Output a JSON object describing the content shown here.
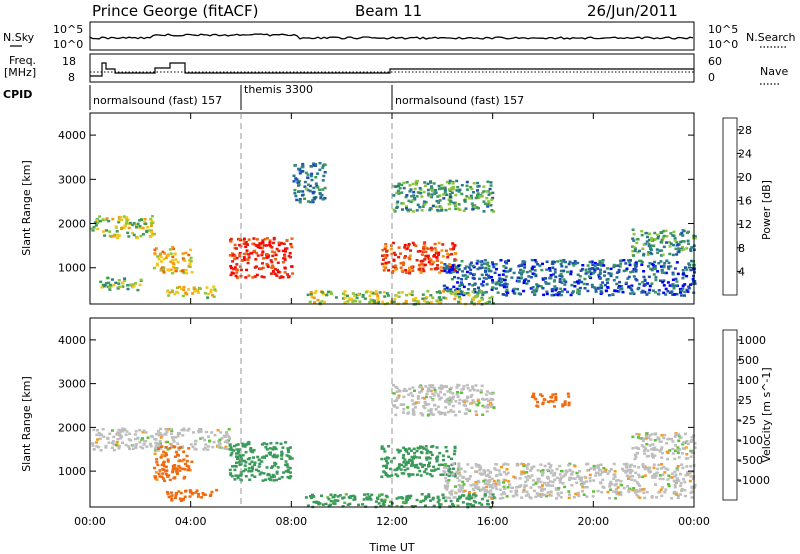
{
  "header": {
    "station": "Prince George (fitACF)",
    "beam": "Beam 11",
    "date": "26/Jun/2011"
  },
  "strip": {
    "nsky_label": "N.Sky",
    "nsearch_label": "N.Search",
    "nsky_ticks": [
      "10^5",
      "10^0"
    ],
    "freq_label_1": "Freq.",
    "freq_label_2": "[MHz]",
    "freq_ticks": [
      "18",
      "8"
    ],
    "nave_label": "Nave",
    "nave_ticks": [
      "60",
      "0"
    ],
    "cpid_label": "CPID",
    "cpid_segments": [
      {
        "start_hour": 0,
        "end_hour": 6,
        "label": "normalsound (fast) 157"
      },
      {
        "start_hour": 6,
        "end_hour": 12,
        "label": "themis 3300"
      },
      {
        "start_hour": 12,
        "end_hour": 24,
        "label": "normalsound (fast) 157"
      }
    ]
  },
  "colors": {
    "power": [
      "#0000ff",
      "#1e4fb0",
      "#2b7a8a",
      "#3a9a5a",
      "#8cc43c",
      "#f5c518",
      "#f59a10",
      "#f06010",
      "#e02010",
      "#ff0000"
    ],
    "velocity": [
      "#ff0000",
      "#f06a10",
      "#f59a20",
      "#bebebe",
      "#bebebe",
      "#5cc03a",
      "#3a9a5a",
      "#2b6fa0",
      "#1e4fb0"
    ]
  },
  "chart_data": [
    {
      "type": "heatmap",
      "title": "",
      "xlabel": "",
      "ylabel": "Slant Range [km]",
      "xlim": [
        0,
        24
      ],
      "ylim": [
        180,
        4500
      ],
      "yticks": [
        "1000",
        "2000",
        "3000",
        "4000"
      ],
      "colorbar_label": "Power [dB]",
      "colorbar_ticks": [
        "4",
        "8",
        "12",
        "16",
        "20",
        "24",
        "28"
      ],
      "colorbar_range": [
        0,
        30
      ],
      "regions": [
        {
          "x": [
            0.0,
            2.5
          ],
          "y": [
            1700,
            2200
          ],
          "value": 14
        },
        {
          "x": [
            0.3,
            2.0
          ],
          "y": [
            500,
            800
          ],
          "value": 12
        },
        {
          "x": [
            2.5,
            4.0
          ],
          "y": [
            900,
            1500
          ],
          "value": 18
        },
        {
          "x": [
            3.0,
            5.0
          ],
          "y": [
            350,
            600
          ],
          "value": 16
        },
        {
          "x": [
            5.5,
            8.0
          ],
          "y": [
            800,
            1700
          ],
          "value": 26
        },
        {
          "x": [
            8.0,
            9.3
          ],
          "y": [
            2500,
            3400
          ],
          "value": 8
        },
        {
          "x": [
            11.5,
            14.5
          ],
          "y": [
            900,
            1600
          ],
          "value": 24
        },
        {
          "x": [
            12.0,
            16.0
          ],
          "y": [
            2300,
            3000
          ],
          "value": 10
        },
        {
          "x": [
            14.0,
            24.0
          ],
          "y": [
            400,
            1200
          ],
          "value": 6
        },
        {
          "x": [
            21.5,
            24.0
          ],
          "y": [
            1300,
            1900
          ],
          "value": 10
        },
        {
          "x": [
            8.5,
            16.0
          ],
          "y": [
            200,
            500
          ],
          "value": 14
        }
      ]
    },
    {
      "type": "heatmap",
      "title": "",
      "xlabel": "Time UT",
      "ylabel": "Slant Range [km]",
      "xlim": [
        0,
        24
      ],
      "ylim": [
        180,
        4500
      ],
      "xticks": [
        "00:00",
        "04:00",
        "08:00",
        "12:00",
        "16:00",
        "20:00",
        "00:00"
      ],
      "yticks": [
        "1000",
        "2000",
        "3000",
        "4000"
      ],
      "colorbar_label": "Velocity [m s^-1]",
      "colorbar_ticks": [
        "1000",
        "500",
        "100",
        "25",
        "-25",
        "-100",
        "-500",
        "-1000"
      ],
      "colorbar_range": [
        -1000,
        1000
      ],
      "regions": [
        {
          "x": [
            0.0,
            5.5
          ],
          "y": [
            1500,
            2000
          ],
          "value": 0
        },
        {
          "x": [
            2.5,
            4.0
          ],
          "y": [
            800,
            1600
          ],
          "value": -150
        },
        {
          "x": [
            3.0,
            5.0
          ],
          "y": [
            350,
            600
          ],
          "value": -300
        },
        {
          "x": [
            5.5,
            8.0
          ],
          "y": [
            800,
            1700
          ],
          "value": 300
        },
        {
          "x": [
            11.5,
            14.5
          ],
          "y": [
            900,
            1600
          ],
          "value": 250
        },
        {
          "x": [
            12.0,
            16.0
          ],
          "y": [
            2300,
            3000
          ],
          "value": 0
        },
        {
          "x": [
            14.0,
            24.0
          ],
          "y": [
            400,
            1200
          ],
          "value": 0
        },
        {
          "x": [
            21.5,
            24.0
          ],
          "y": [
            1300,
            1900
          ],
          "value": 0
        },
        {
          "x": [
            8.5,
            16.0
          ],
          "y": [
            200,
            500
          ],
          "value": 150
        },
        {
          "x": [
            17.5,
            19.0
          ],
          "y": [
            2500,
            2800
          ],
          "value": -200
        }
      ]
    }
  ]
}
